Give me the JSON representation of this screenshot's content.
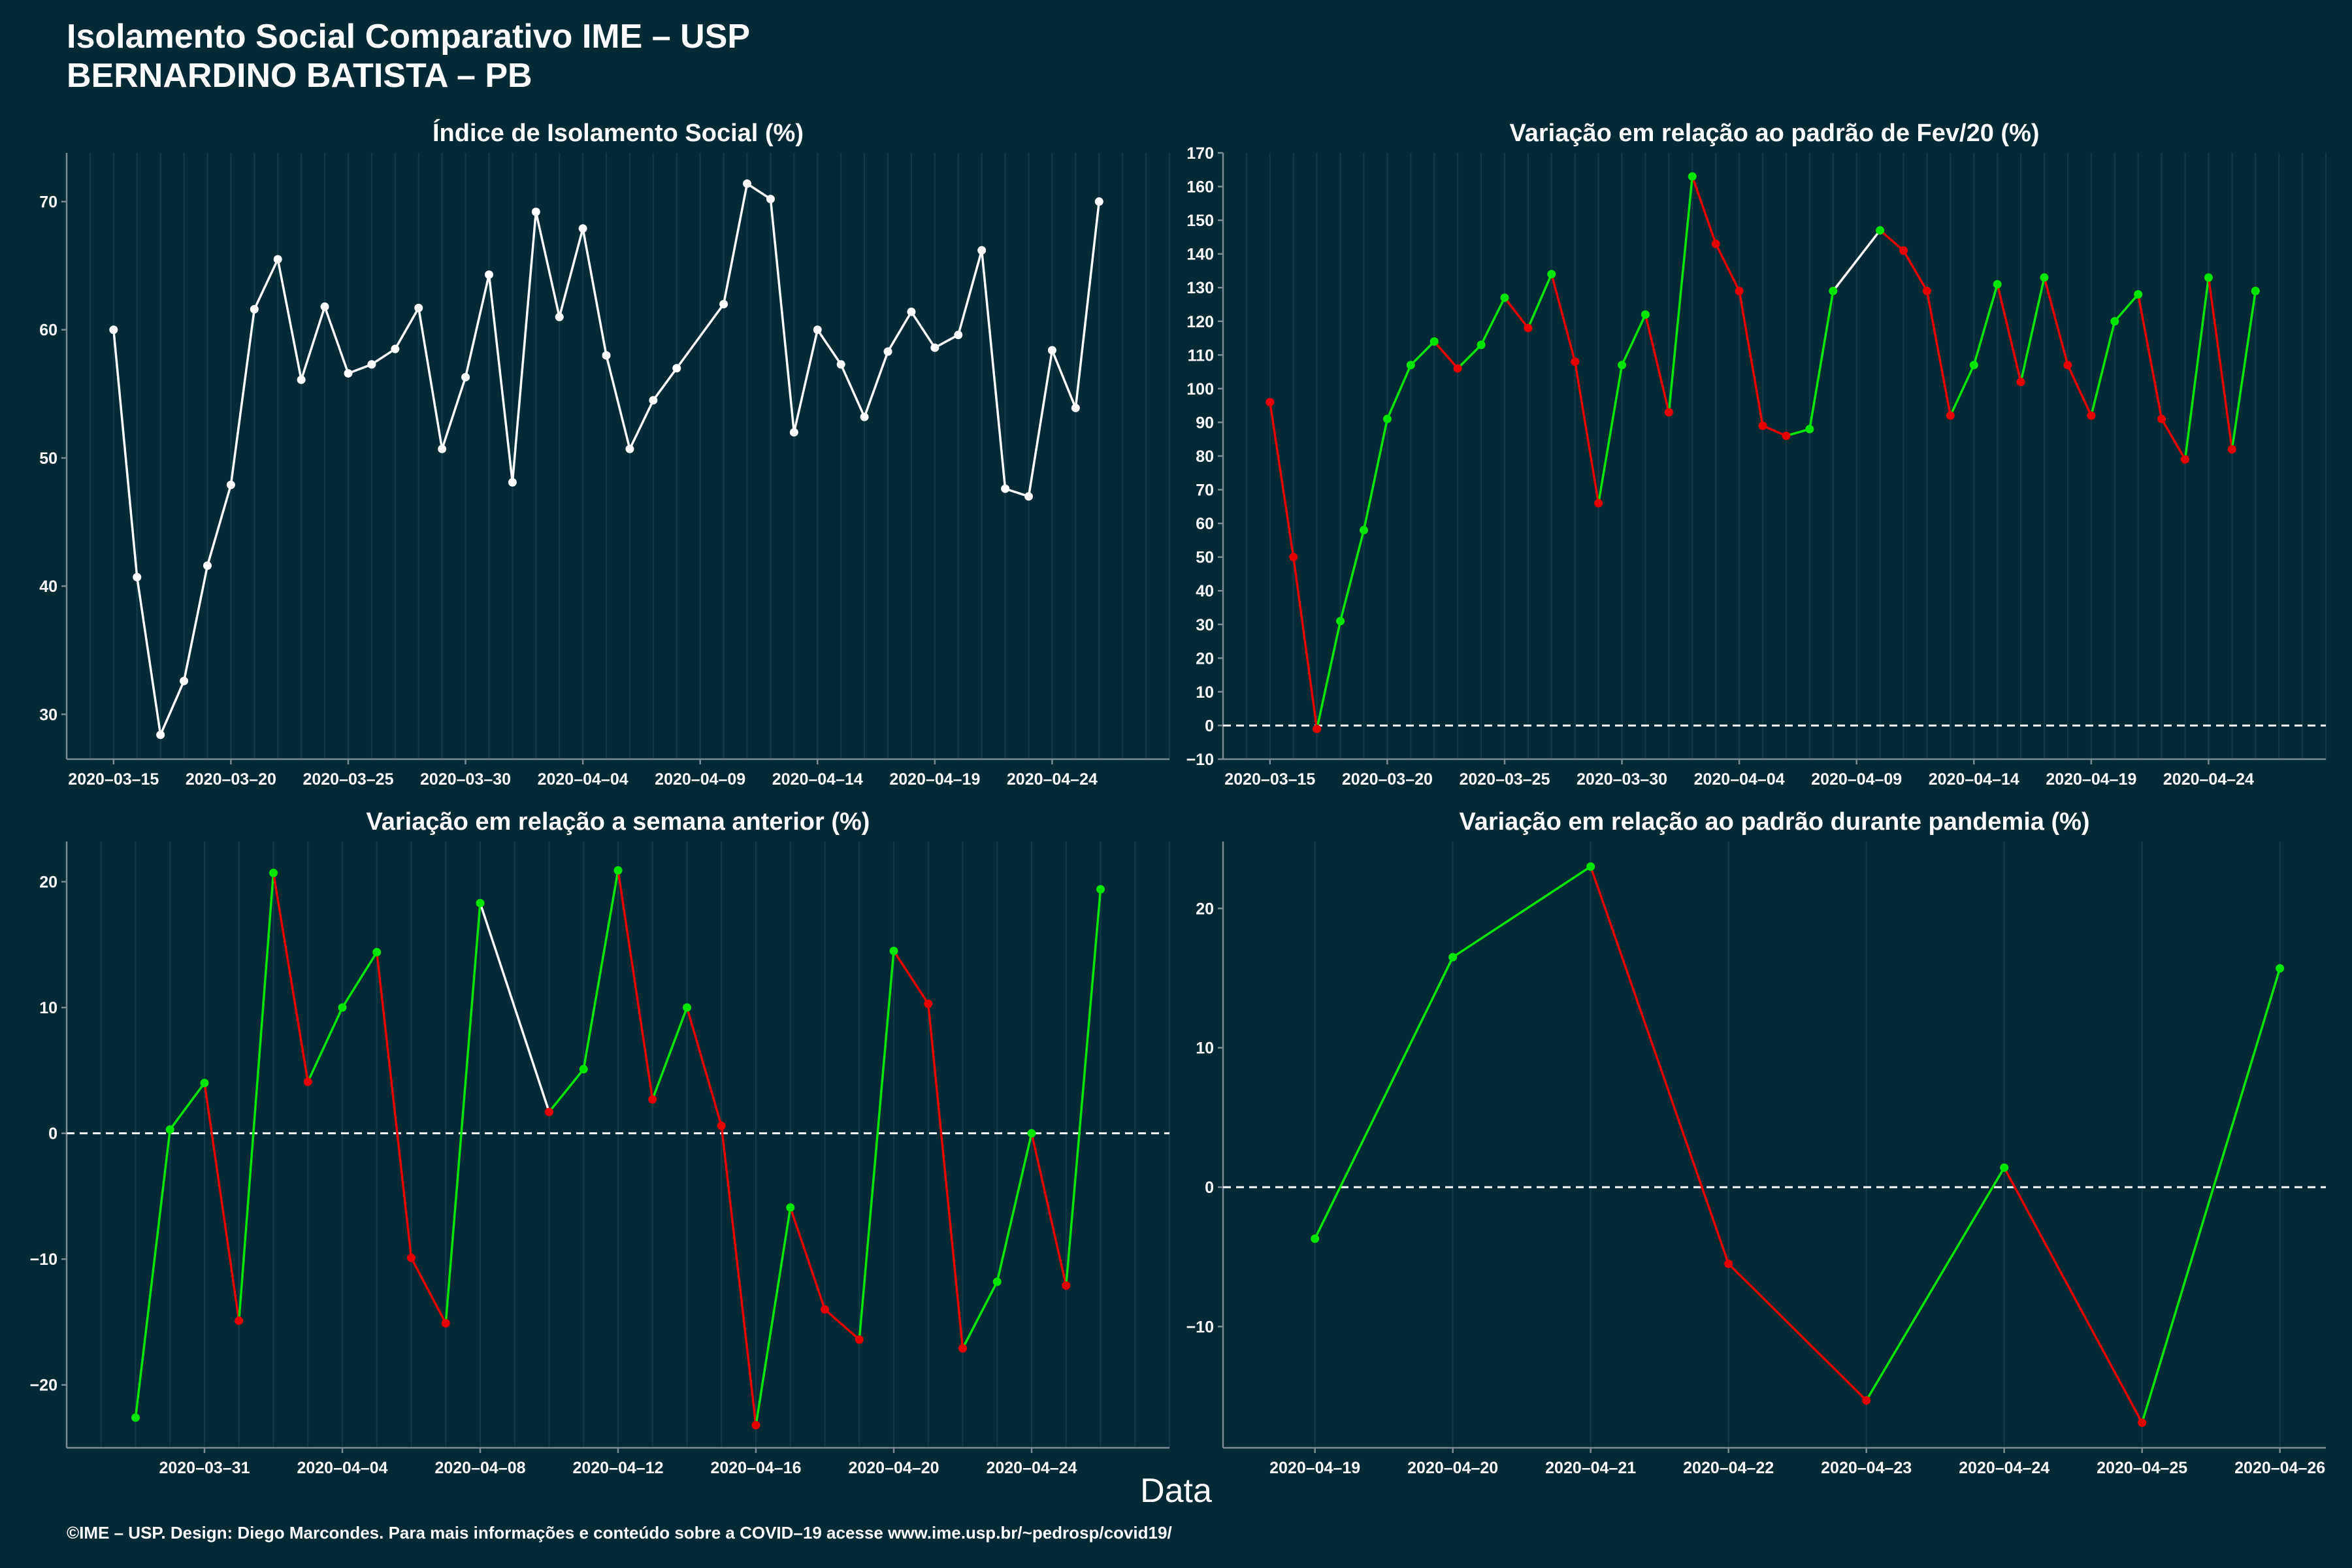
{
  "page": {
    "title_line1": "Isolamento Social Comparativo IME – USP",
    "title_line2": "BERNARDINO BATISTA – PB",
    "xlabel": "Data",
    "footer": "©IME – USP. Design: Diego Marcondes. Para mais informações e conteúdo sobre a COVID–19 acesse www.ime.usp.br/~pedrosp/covid19/"
  },
  "colors": {
    "background": "#022a35",
    "axis": "#7a8c92",
    "grid": "#0f3c48",
    "white_series": "#ffffff",
    "positive": "#00e600",
    "negative": "#e60000",
    "zero_line": "#ffffff"
  },
  "chart_data": [
    {
      "id": "isolamento",
      "type": "line",
      "title": "Índice de Isolamento Social (%)",
      "x_type": "date",
      "xlim": [
        "2020-03-13",
        "2020-04-29"
      ],
      "ylim": [
        26.5,
        73.8
      ],
      "xticks": [
        "2020-03-15",
        "2020-03-20",
        "2020-03-25",
        "2020-03-30",
        "2020-04-04",
        "2020-04-09",
        "2020-04-14",
        "2020-04-19",
        "2020-04-24"
      ],
      "yticks": [
        30,
        40,
        50,
        60,
        70
      ],
      "color_mode": "white",
      "zero_line": false,
      "points": [
        [
          "2020-03-15",
          60.0
        ],
        [
          "2020-03-16",
          40.7
        ],
        [
          "2020-03-17",
          28.4
        ],
        [
          "2020-03-18",
          32.6
        ],
        [
          "2020-03-19",
          41.6
        ],
        [
          "2020-03-20",
          47.9
        ],
        [
          "2020-03-21",
          61.6
        ],
        [
          "2020-03-22",
          65.5
        ],
        [
          "2020-03-23",
          56.1
        ],
        [
          "2020-03-24",
          61.8
        ],
        [
          "2020-03-25",
          56.6
        ],
        [
          "2020-03-26",
          57.3
        ],
        [
          "2020-03-27",
          58.5
        ],
        [
          "2020-03-28",
          61.7
        ],
        [
          "2020-03-29",
          50.7
        ],
        [
          "2020-03-30",
          56.3
        ],
        [
          "2020-03-31",
          64.3
        ],
        [
          "2020-04-01",
          48.1
        ],
        [
          "2020-04-02",
          69.2
        ],
        [
          "2020-04-03",
          61.0
        ],
        [
          "2020-04-04",
          67.9
        ],
        [
          "2020-04-05",
          58.0
        ],
        [
          "2020-04-06",
          50.7
        ],
        [
          "2020-04-07",
          54.5
        ],
        [
          "2020-04-08",
          57.0
        ],
        [
          "2020-04-10",
          62.0
        ],
        [
          "2020-04-11",
          71.4
        ],
        [
          "2020-04-12",
          70.2
        ],
        [
          "2020-04-13",
          52.0
        ],
        [
          "2020-04-14",
          60.0
        ],
        [
          "2020-04-15",
          57.3
        ],
        [
          "2020-04-16",
          53.2
        ],
        [
          "2020-04-17",
          58.3
        ],
        [
          "2020-04-18",
          61.4
        ],
        [
          "2020-04-19",
          58.6
        ],
        [
          "2020-04-20",
          59.6
        ],
        [
          "2020-04-21",
          66.2
        ],
        [
          "2020-04-22",
          47.6
        ],
        [
          "2020-04-23",
          47.0
        ],
        [
          "2020-04-24",
          58.4
        ],
        [
          "2020-04-25",
          53.9
        ],
        [
          "2020-04-26",
          70.0
        ]
      ]
    },
    {
      "id": "fev20",
      "type": "line",
      "title": "Variação em relação ao padrão de Fev/20 (%)",
      "x_type": "date",
      "xlim": [
        "2020-03-13",
        "2020-04-29"
      ],
      "ylim": [
        -10,
        170
      ],
      "xticks": [
        "2020-03-15",
        "2020-03-20",
        "2020-03-25",
        "2020-03-30",
        "2020-04-04",
        "2020-04-09",
        "2020-04-14",
        "2020-04-19",
        "2020-04-24"
      ],
      "yticks": [
        -10,
        0,
        10,
        20,
        30,
        40,
        50,
        60,
        70,
        80,
        90,
        100,
        110,
        120,
        130,
        140,
        150,
        160,
        170
      ],
      "color_mode": "sign",
      "zero_line": true,
      "points": [
        [
          "2020-03-15",
          96
        ],
        [
          "2020-03-16",
          50
        ],
        [
          "2020-03-17",
          -1
        ],
        [
          "2020-03-18",
          31
        ],
        [
          "2020-03-19",
          58
        ],
        [
          "2020-03-20",
          91
        ],
        [
          "2020-03-21",
          107
        ],
        [
          "2020-03-22",
          114
        ],
        [
          "2020-03-23",
          106
        ],
        [
          "2020-03-24",
          113
        ],
        [
          "2020-03-25",
          127
        ],
        [
          "2020-03-26",
          118
        ],
        [
          "2020-03-27",
          134
        ],
        [
          "2020-03-28",
          108
        ],
        [
          "2020-03-29",
          66
        ],
        [
          "2020-03-30",
          107
        ],
        [
          "2020-03-31",
          122
        ],
        [
          "2020-04-01",
          93
        ],
        [
          "2020-04-02",
          163
        ],
        [
          "2020-04-03",
          143
        ],
        [
          "2020-04-04",
          129
        ],
        [
          "2020-04-05",
          89
        ],
        [
          "2020-04-06",
          86
        ],
        [
          "2020-04-07",
          88
        ],
        [
          "2020-04-08",
          129
        ],
        [
          "2020-04-10",
          147
        ],
        [
          "2020-04-11",
          141
        ],
        [
          "2020-04-12",
          129
        ],
        [
          "2020-04-13",
          92
        ],
        [
          "2020-04-14",
          107
        ],
        [
          "2020-04-15",
          131
        ],
        [
          "2020-04-16",
          102
        ],
        [
          "2020-04-17",
          133
        ],
        [
          "2020-04-18",
          107
        ],
        [
          "2020-04-19",
          92
        ],
        [
          "2020-04-20",
          120
        ],
        [
          "2020-04-21",
          128
        ],
        [
          "2020-04-22",
          91
        ],
        [
          "2020-04-23",
          79
        ],
        [
          "2020-04-24",
          133
        ],
        [
          "2020-04-25",
          82
        ],
        [
          "2020-04-26",
          129
        ]
      ]
    },
    {
      "id": "semana",
      "type": "line",
      "title": "Variação em relação a semana anterior (%)",
      "x_type": "date",
      "xlim": [
        "2020-03-27",
        "2020-04-28"
      ],
      "ylim": [
        -25,
        23.2
      ],
      "xticks": [
        "2020-03-31",
        "2020-04-04",
        "2020-04-08",
        "2020-04-12",
        "2020-04-16",
        "2020-04-20",
        "2020-04-24"
      ],
      "yticks": [
        -20,
        -10,
        0,
        10,
        20
      ],
      "color_mode": "sign",
      "zero_line": true,
      "points": [
        [
          "2020-03-29",
          -22.6
        ],
        [
          "2020-03-30",
          0.3
        ],
        [
          "2020-03-31",
          4.0
        ],
        [
          "2020-04-01",
          -14.9
        ],
        [
          "2020-04-02",
          20.7
        ],
        [
          "2020-04-03",
          4.1
        ],
        [
          "2020-04-04",
          10.0
        ],
        [
          "2020-04-05",
          14.4
        ],
        [
          "2020-04-06",
          -9.9
        ],
        [
          "2020-04-07",
          -15.1
        ],
        [
          "2020-04-08",
          18.3
        ],
        [
          "2020-04-10",
          1.7
        ],
        [
          "2020-04-11",
          5.1
        ],
        [
          "2020-04-12",
          20.9
        ],
        [
          "2020-04-13",
          2.7
        ],
        [
          "2020-04-14",
          10.0
        ],
        [
          "2020-04-15",
          0.6
        ],
        [
          "2020-04-16",
          -23.2
        ],
        [
          "2020-04-17",
          -5.9
        ],
        [
          "2020-04-18",
          -14.0
        ],
        [
          "2020-04-19",
          -16.4
        ],
        [
          "2020-04-20",
          14.5
        ],
        [
          "2020-04-21",
          10.3
        ],
        [
          "2020-04-22",
          -17.1
        ],
        [
          "2020-04-23",
          -11.8
        ],
        [
          "2020-04-24",
          0.0
        ],
        [
          "2020-04-25",
          -12.1
        ],
        [
          "2020-04-26",
          19.4
        ]
      ]
    },
    {
      "id": "pandemia",
      "type": "line",
      "title": "Variação em relação ao padrão durante pandemia (%)",
      "x_type": "date",
      "xlim": [
        "2020-04-18 08:00",
        "2020-04-26 08:00"
      ],
      "ylim": [
        -18.7,
        24.8
      ],
      "xticks": [
        "2020-04-19",
        "2020-04-20",
        "2020-04-21",
        "2020-04-22",
        "2020-04-23",
        "2020-04-24",
        "2020-04-25",
        "2020-04-26"
      ],
      "yticks": [
        -10,
        0,
        10,
        20
      ],
      "color_mode": "sign",
      "zero_line": true,
      "points": [
        [
          "2020-04-19",
          -3.7
        ],
        [
          "2020-04-20",
          16.5
        ],
        [
          "2020-04-21",
          23.0
        ],
        [
          "2020-04-22",
          -5.5
        ],
        [
          "2020-04-23",
          -15.3
        ],
        [
          "2020-04-24",
          1.4
        ],
        [
          "2020-04-25",
          -16.9
        ],
        [
          "2020-04-26",
          15.7
        ]
      ]
    }
  ]
}
